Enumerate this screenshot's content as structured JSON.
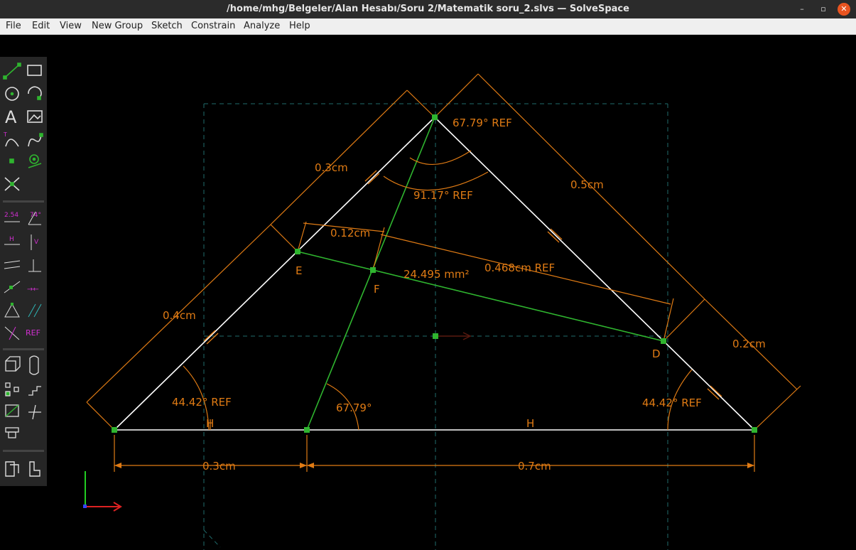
{
  "window": {
    "title": "/home/mhg/Belgeler/Alan Hesabı/Soru 2/Matematik soru_2.slvs — SolveSpace",
    "minimize_glyph": "–",
    "maximize_glyph": "▫",
    "close_glyph": "✕"
  },
  "menu": [
    "File",
    "Edit",
    "View",
    "New Group",
    "Sketch",
    "Constrain",
    "Analyze",
    "Help"
  ],
  "toolbar_icons": [
    "line-segment-icon",
    "rectangle-icon",
    "circle-icon",
    "arc-icon",
    "text-icon",
    "image-icon",
    "tangent-arc-icon",
    "bezier-spline-icon",
    "datum-point-icon",
    "workplane-icon",
    "split-curves-icon",
    "distance-dimension-icon",
    "angle-dimension-icon",
    "horizontal-constraint-icon",
    "vertical-constraint-icon",
    "parallel-constraint-icon",
    "perpendicular-constraint-icon",
    "point-on-line-icon",
    "symmetric-constraint-icon",
    "equal-length-icon",
    "same-orientation-icon",
    "other-supplementary-icon",
    "reference-toggle-icon",
    "extrude-icon",
    "lathe-icon",
    "step-rotating-icon",
    "step-translating-icon",
    "sketch-in-3d-icon",
    "sketch-in-new-workplane-icon",
    "linked-file-icon",
    "assemble-icon",
    "sketch-in-2d-icon"
  ],
  "toolbar_labels": {
    "distance": "2.54",
    "angle": "74°",
    "horizontal": "H",
    "vertical": "V",
    "reference": "REF"
  },
  "sketch": {
    "colors": {
      "line": "#ffffff",
      "construction": "#2fb52f",
      "dimension": "#e07b14",
      "point": "#2fb52f",
      "workplane": "#1f6b6b"
    },
    "point_labels": {
      "E": "E",
      "F": "F",
      "D": "D"
    },
    "dimensions": {
      "top_angle": "67.79°  REF",
      "inner_angle": "91.17°  REF",
      "left_side_upper": "0.3cm",
      "right_side": "0.5cm",
      "ef_length": "0.12cm",
      "distance_ref": "0.468cm  REF",
      "area": "24.495  mm²",
      "left_side_lower": "0.4cm",
      "right_lower": "0.2cm",
      "left_base_angle": "44.42°  REF",
      "mid_angle": "67.79°",
      "right_base_angle": "44.42°  REF",
      "horizontal_left": "H",
      "horizontal_right": "H",
      "base_left": "0.3cm",
      "base_right": "0.7cm"
    }
  }
}
